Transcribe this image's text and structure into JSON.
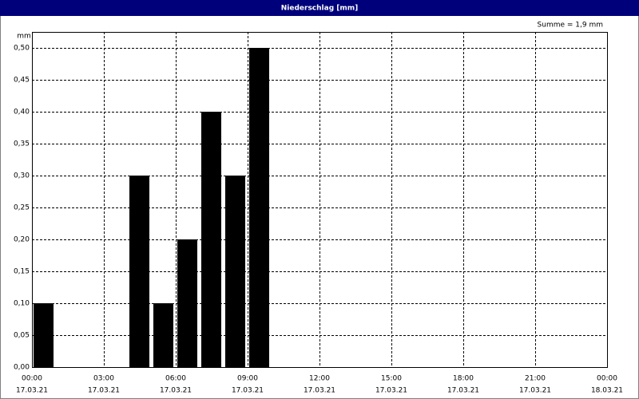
{
  "chart_data": {
    "type": "bar",
    "title": "Niederschlag [mm]",
    "y_label": "mm",
    "annotation": "Summe = 1,9 mm",
    "x": [
      "17.03.21 00:00",
      "17.03.21 04:00",
      "17.03.21 05:00",
      "17.03.21 06:00",
      "17.03.21 07:00",
      "17.03.21 08:00",
      "17.03.21 09:00"
    ],
    "values": [
      0.1,
      0.3,
      0.1,
      0.2,
      0.4,
      0.3,
      0.5
    ],
    "bar_hours": 1,
    "color": "#000000",
    "xlim": [
      "17.03.21 00:00",
      "18.03.21 00:00"
    ],
    "xticks": [
      {
        "value": "17.03.21 00:00",
        "label": [
          "00:00",
          "17.03.21"
        ]
      },
      {
        "value": "17.03.21 03:00",
        "label": [
          "03:00",
          "17.03.21"
        ]
      },
      {
        "value": "17.03.21 06:00",
        "label": [
          "06:00",
          "17.03.21"
        ]
      },
      {
        "value": "17.03.21 09:00",
        "label": [
          "09:00",
          "17.03.21"
        ]
      },
      {
        "value": "17.03.21 12:00",
        "label": [
          "12:00",
          "17.03.21"
        ]
      },
      {
        "value": "17.03.21 15:00",
        "label": [
          "15:00",
          "17.03.21"
        ]
      },
      {
        "value": "17.03.21 18:00",
        "label": [
          "18:00",
          "17.03.21"
        ]
      },
      {
        "value": "17.03.21 21:00",
        "label": [
          "21:00",
          "17.03.21"
        ]
      },
      {
        "value": "18.03.21 00:00",
        "label": [
          "00:00",
          "18.03.21"
        ]
      }
    ],
    "ylim": [
      0,
      0.525
    ],
    "yticks": [
      {
        "value": 0,
        "label": "0,00"
      },
      {
        "value": 0.05,
        "label": "0,05"
      },
      {
        "value": 0.1,
        "label": "0,10"
      },
      {
        "value": 0.15,
        "label": "0,15"
      },
      {
        "value": 0.2,
        "label": "0,20"
      },
      {
        "value": 0.25,
        "label": "0,25"
      },
      {
        "value": 0.3,
        "label": "0,30"
      },
      {
        "value": 0.35,
        "label": "0,35"
      },
      {
        "value": 0.4,
        "label": "0,40"
      },
      {
        "value": 0.45,
        "label": "0,45"
      },
      {
        "value": 0.5,
        "label": "0,50"
      }
    ],
    "grid": true
  }
}
